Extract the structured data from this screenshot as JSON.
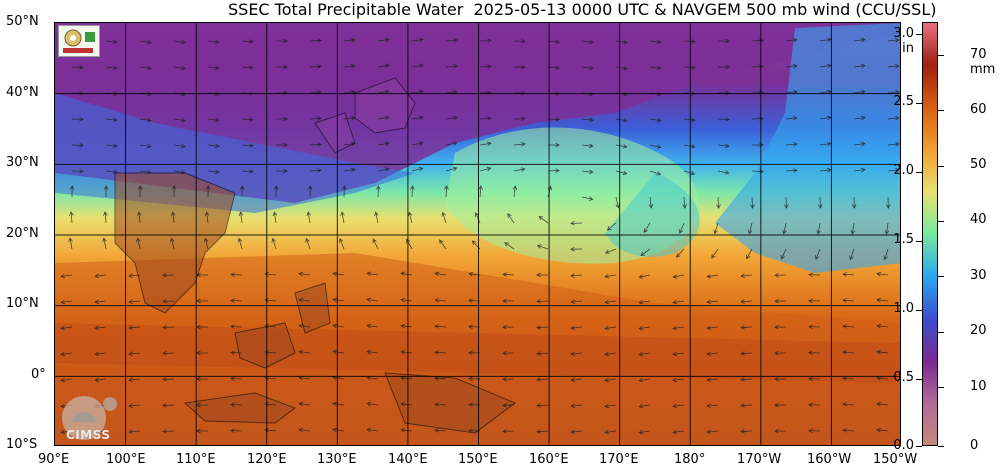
{
  "title": "SSEC Total Precipitable Water  2025-05-13 0000 UTC & NAVGEM 500 mb wind (CCU/SSL)",
  "map": {
    "lat_labels": [
      "50°N",
      "40°N",
      "30°N",
      "20°N",
      "10°N",
      "0°",
      "10°S"
    ],
    "lon_labels": [
      "90°E",
      "100°E",
      "110°E",
      "120°E",
      "130°E",
      "140°E",
      "150°E",
      "160°E",
      "170°E",
      "180°",
      "170°W",
      "160°W",
      "150°W"
    ],
    "grid": true,
    "region": "Western Pacific"
  },
  "colorbar": {
    "unit_in": "in",
    "unit_mm": "mm",
    "in_ticks": [
      "3.0",
      "2.5",
      "2.0",
      "1.5",
      "1.0",
      "0.5",
      "0.0"
    ],
    "mm_ticks": [
      "70",
      "60",
      "50",
      "40",
      "30",
      "20",
      "10",
      "0"
    ],
    "colors": [
      "#c48a7a",
      "#b06a9a",
      "#7a2a90",
      "#3a4fd0",
      "#2aa8f0",
      "#78e8a0",
      "#e8e070",
      "#f0a030",
      "#d86010",
      "#a02010",
      "#e87080"
    ]
  },
  "logos": {
    "cimss": "CIMSS"
  }
}
